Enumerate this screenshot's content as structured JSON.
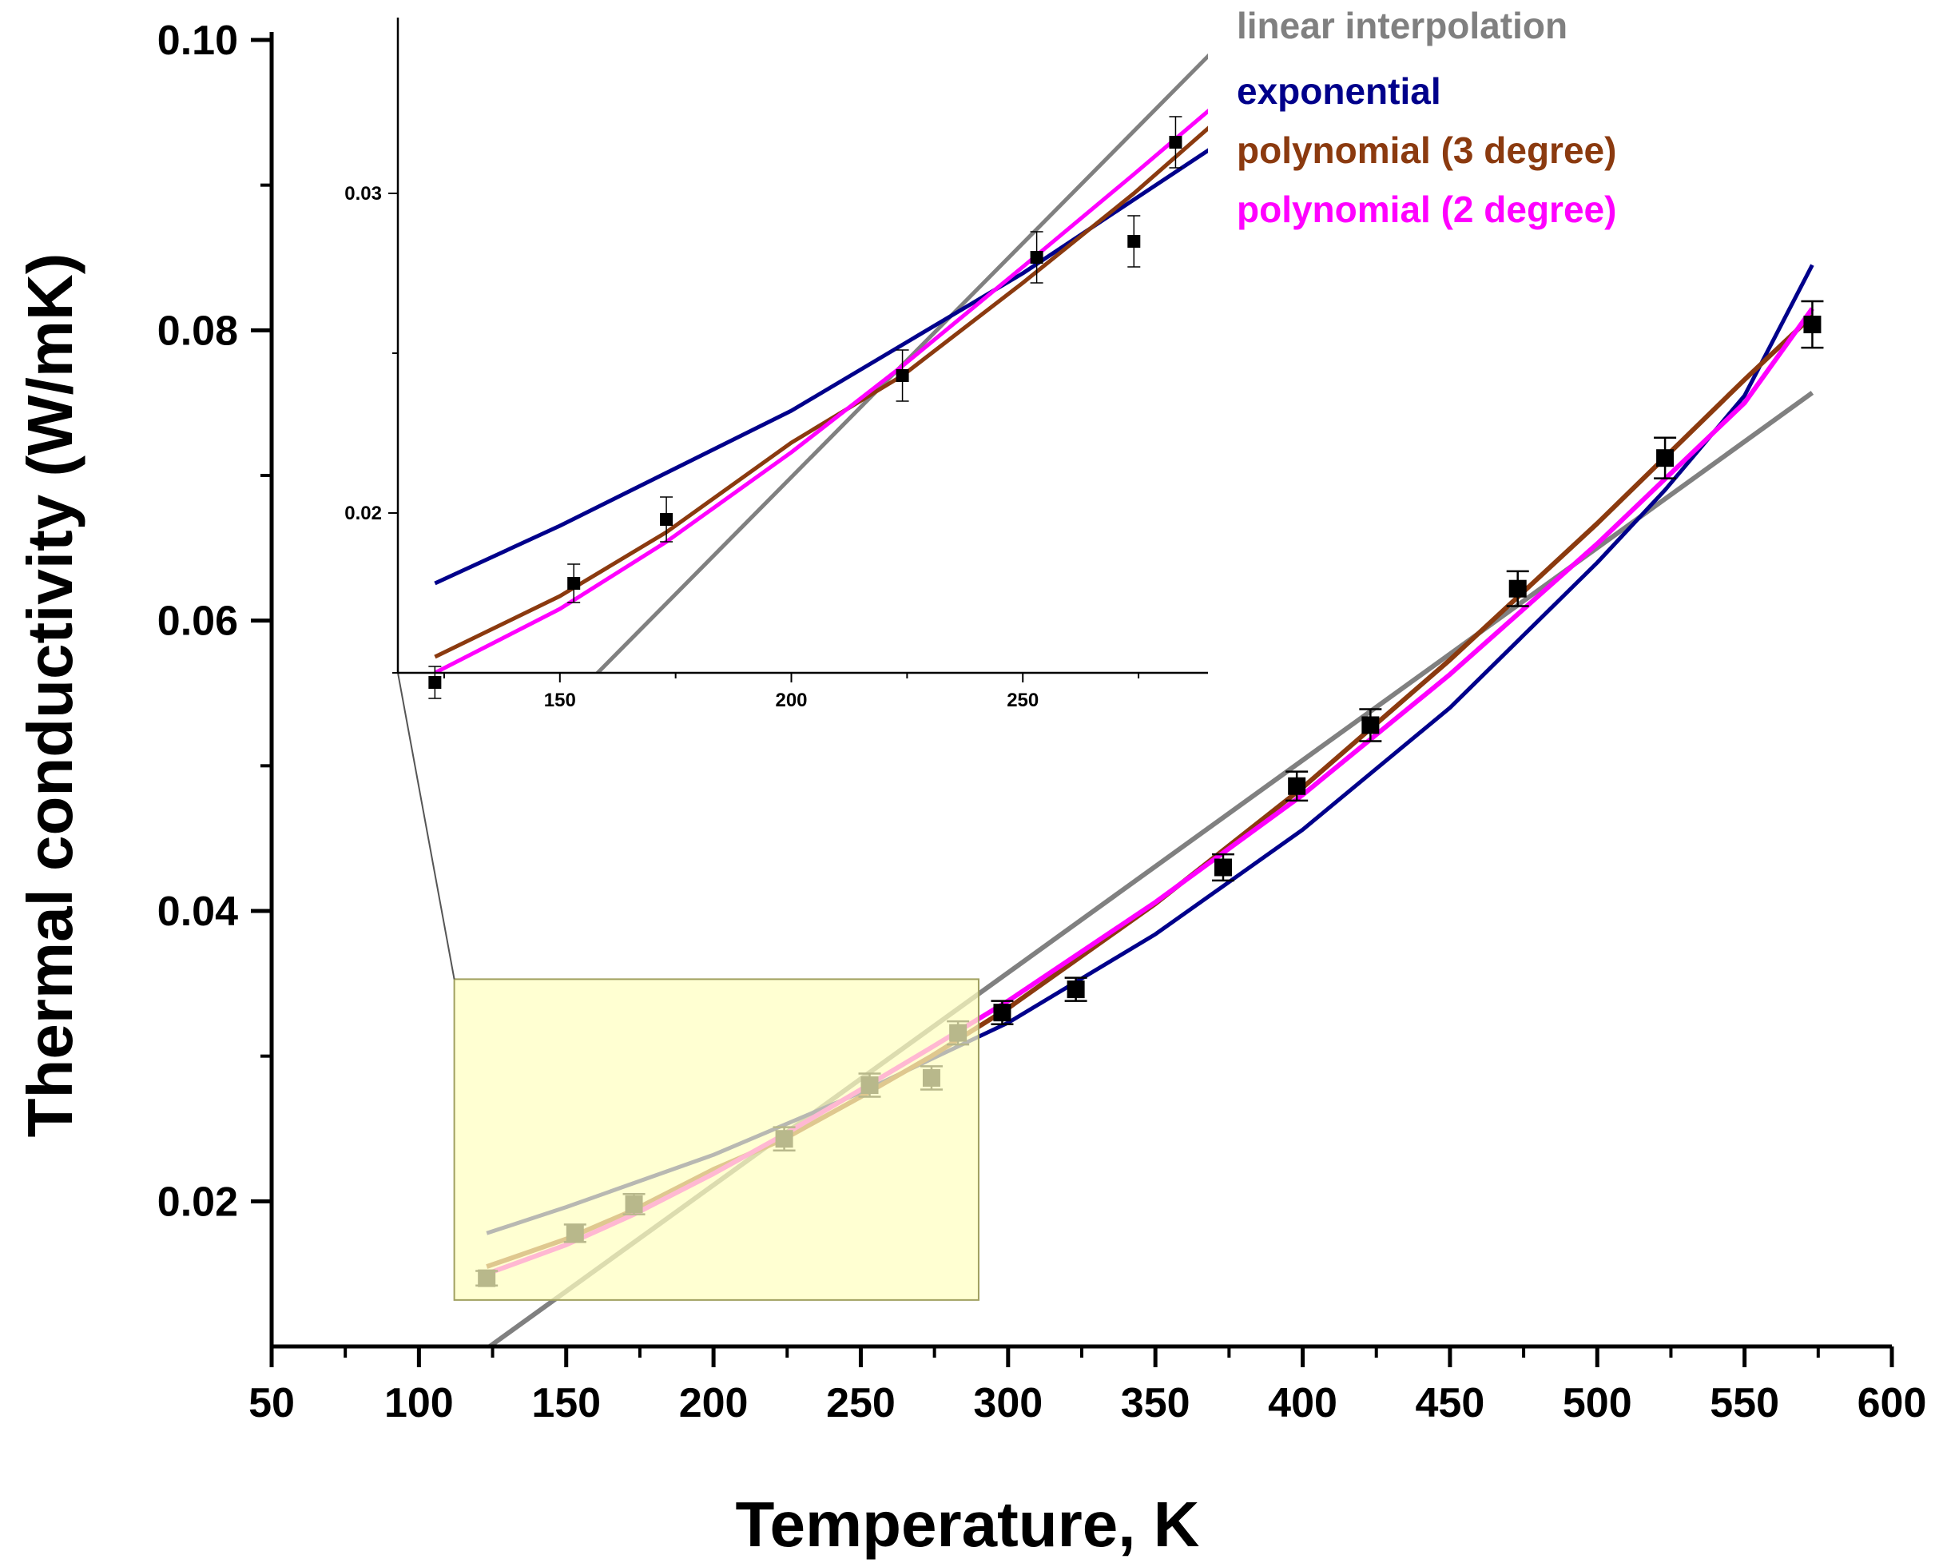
{
  "colors": {
    "linear": "#808080",
    "exponential": "#00008B",
    "poly3": "#8B3A0F",
    "poly2": "#FF00FF",
    "markers": "#000000",
    "highlight_fill": "#FFFFC0",
    "highlight_stroke": "#A0A060"
  },
  "chart_data": {
    "type": "scatter",
    "xlabel": "Temperature, K",
    "ylabel": "Thermal conductivity (W/mK)",
    "xlim": [
      50,
      600
    ],
    "ylim": [
      0.01,
      0.1
    ],
    "x_ticks": [
      50,
      100,
      150,
      200,
      250,
      300,
      350,
      400,
      450,
      500,
      550,
      600
    ],
    "y_ticks": [
      0.02,
      0.04,
      0.06,
      0.08,
      0.1
    ],
    "x_tick_labels": [
      "50",
      "100",
      "150",
      "200",
      "250",
      "300",
      "350",
      "400",
      "450",
      "500",
      "550",
      "600"
    ],
    "y_tick_labels": [
      "0.02",
      "0.04",
      "0.06",
      "0.08",
      "0.10"
    ],
    "legend_position": "top-right",
    "points": {
      "x": [
        123,
        153,
        173,
        224,
        253,
        274,
        283,
        298,
        323,
        373,
        398,
        423,
        473,
        523,
        573
      ],
      "y": [
        0.0147,
        0.0178,
        0.0198,
        0.0243,
        0.028,
        0.0285,
        0.0316,
        0.033,
        0.0346,
        0.043,
        0.0486,
        0.0528,
        0.0622,
        0.0712,
        0.0804
      ],
      "yerr": [
        0.0005,
        0.0006,
        0.0007,
        0.0008,
        0.0008,
        0.0008,
        0.0008,
        0.0008,
        0.0008,
        0.0009,
        0.001,
        0.0011,
        0.0012,
        0.0014,
        0.0016
      ]
    },
    "series": [
      {
        "name": "linear interpolation",
        "x": [
          124,
          573
        ],
        "y": [
          0.01,
          0.0757
        ]
      },
      {
        "name": "exponential",
        "x": [
          123,
          150,
          200,
          250,
          300,
          350,
          400,
          450,
          500,
          523,
          550,
          573
        ],
        "y": [
          0.0178,
          0.0196,
          0.0232,
          0.0275,
          0.0323,
          0.0384,
          0.0456,
          0.054,
          0.064,
          0.069,
          0.0755,
          0.0845
        ]
      },
      {
        "name": "polynomial (3 degree)",
        "x": [
          123,
          150,
          173,
          200,
          224,
          250,
          274,
          300,
          350,
          400,
          450,
          500,
          550,
          573
        ],
        "y": [
          0.0155,
          0.0174,
          0.0194,
          0.0222,
          0.0243,
          0.0272,
          0.03,
          0.0333,
          0.0405,
          0.0485,
          0.0573,
          0.0667,
          0.0766,
          0.081
        ]
      },
      {
        "name": "polynomial (2 degree)",
        "x": [
          123,
          150,
          173,
          200,
          224,
          250,
          274,
          300,
          350,
          400,
          450,
          500,
          550,
          573
        ],
        "y": [
          0.015,
          0.017,
          0.0191,
          0.0219,
          0.0246,
          0.0277,
          0.0306,
          0.0338,
          0.0406,
          0.048,
          0.0563,
          0.0653,
          0.075,
          0.0815
        ]
      }
    ],
    "highlight_region": {
      "x": [
        112,
        290
      ],
      "y": [
        0.0132,
        0.0353
      ]
    },
    "inset": {
      "xlim": [
        115,
        290
      ],
      "ylim": [
        0.015,
        0.0355
      ],
      "x_ticks": [
        150,
        200,
        250
      ],
      "y_ticks": [
        0.02,
        0.03
      ],
      "x_tick_labels": [
        "150",
        "200",
        "250"
      ],
      "y_tick_labels": [
        "0.02",
        "0.03"
      ]
    }
  }
}
